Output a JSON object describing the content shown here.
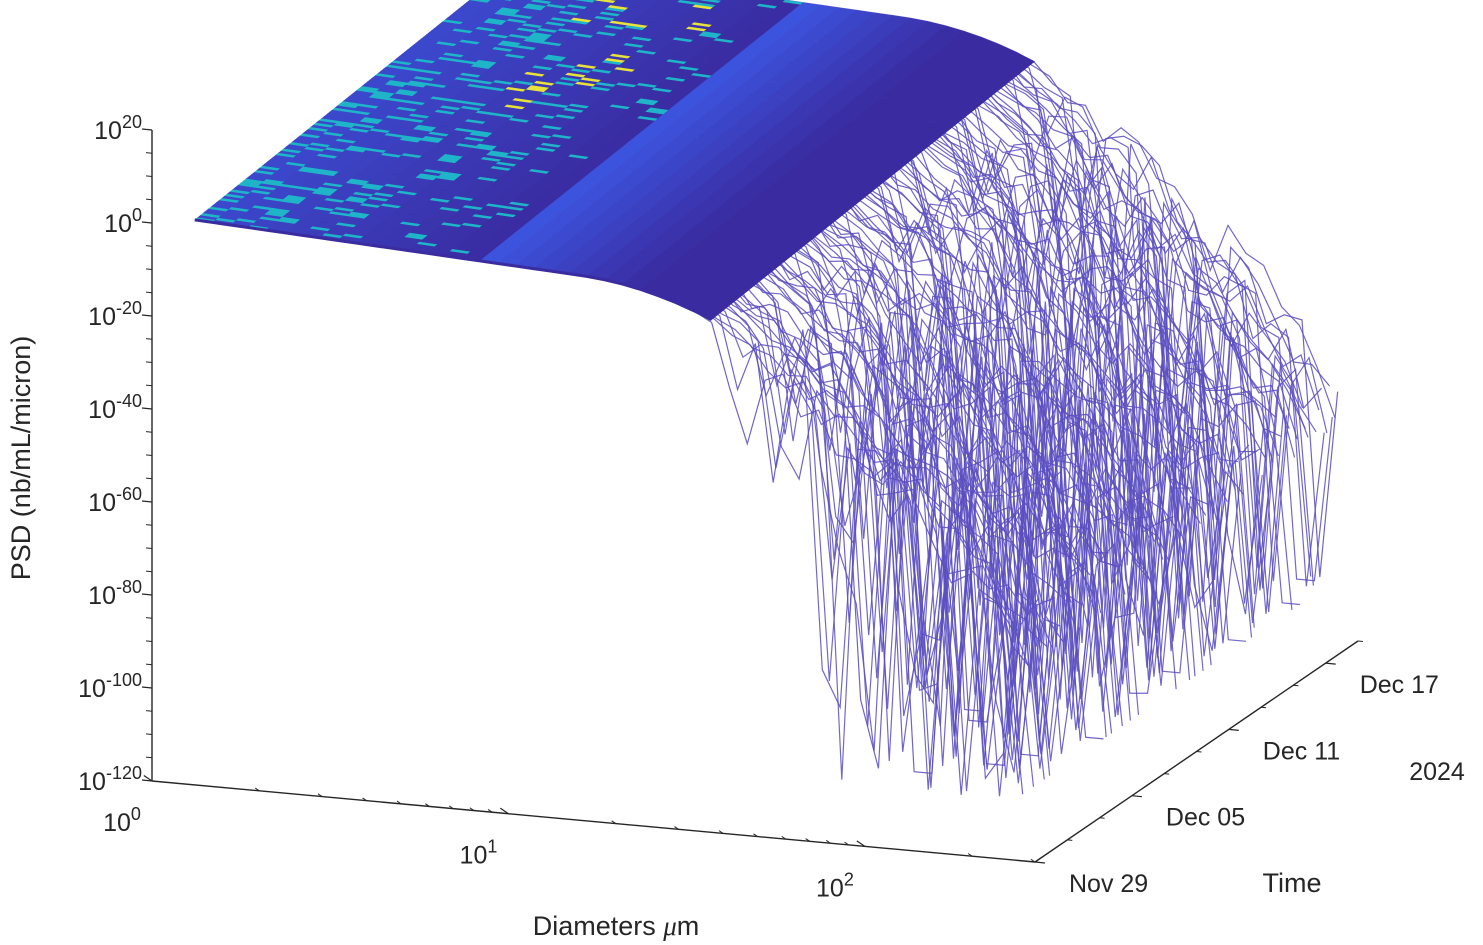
{
  "chart_data": {
    "type": "surface-3d",
    "title": "",
    "xlabel": "Diameters μm",
    "ylabel": "Time",
    "zlabel": "PSD (nb/mL/micron)",
    "x_scale": "log",
    "z_scale": "log",
    "xlim": [
      1,
      300
    ],
    "zlim_exponent": [
      -120,
      20
    ],
    "x_ticks": [
      {
        "base": "10",
        "exp": "0",
        "value": 1
      },
      {
        "base": "10",
        "exp": "1",
        "value": 10
      },
      {
        "base": "10",
        "exp": "2",
        "value": 100
      }
    ],
    "z_ticks": [
      {
        "base": "10",
        "exp": "20"
      },
      {
        "base": "10",
        "exp": "0"
      },
      {
        "base": "10",
        "exp": "-20"
      },
      {
        "base": "10",
        "exp": "-40"
      },
      {
        "base": "10",
        "exp": "-60"
      },
      {
        "base": "10",
        "exp": "-80"
      },
      {
        "base": "10",
        "exp": "-100"
      },
      {
        "base": "10",
        "exp": "-120"
      }
    ],
    "y_ticks": [
      "Nov 29",
      "Dec 05",
      "Dec 11",
      "Dec 17"
    ],
    "y_tick_days": [
      0,
      6,
      12,
      18
    ],
    "y_secondary_label": "2024",
    "time_range_days": [
      0,
      20
    ],
    "surface_summary": {
      "plateau_log10_psd_at_1um": 0,
      "plateau_log10_psd_at_50um_first_day": -20,
      "deepest_dip_log10_psd": -105,
      "peak_color_region_diameter_um": [
        2,
        8
      ]
    },
    "colors": {
      "surface_base": "#3a2ba0",
      "surface_mid": "#3c55e0",
      "surface_high": "#1fb5c8",
      "surface_peak": "#e8e23a",
      "drop_lines": "#5a4fc0",
      "faint_lines": "#c8c6e6"
    }
  }
}
